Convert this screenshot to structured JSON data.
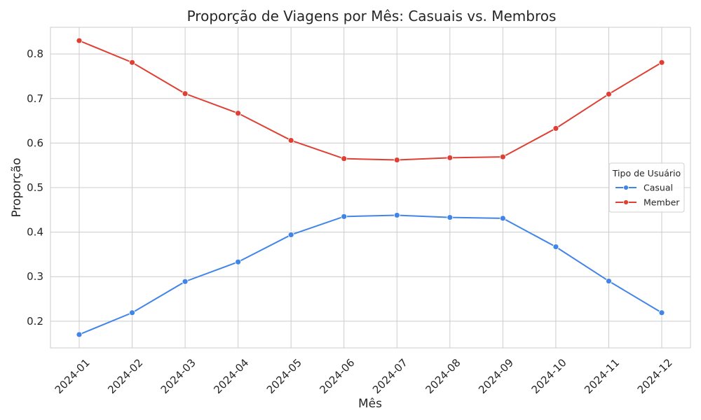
{
  "chart_data": {
    "type": "line",
    "title": "Proporção de Viagens por Mês: Casuais vs. Membros",
    "xlabel": "Mês",
    "ylabel": "Proporção",
    "categories": [
      "2024-01",
      "2024-02",
      "2024-03",
      "2024-04",
      "2024-05",
      "2024-06",
      "2024-07",
      "2024-08",
      "2024-09",
      "2024-10",
      "2024-11",
      "2024-12"
    ],
    "ylim": [
      0.14,
      0.86
    ],
    "yticks": [
      0.2,
      0.3,
      0.4,
      0.5,
      0.6,
      0.7,
      0.8
    ],
    "ytick_labels": [
      "0.2",
      "0.3",
      "0.4",
      "0.5",
      "0.6",
      "0.7",
      "0.8"
    ],
    "grid": true,
    "legend": {
      "title": "Tipo de Usuário",
      "placement": "center-right"
    },
    "series": [
      {
        "name": "Casual",
        "color": "#4285e8",
        "values": [
          0.17,
          0.219,
          0.289,
          0.333,
          0.394,
          0.435,
          0.438,
          0.433,
          0.431,
          0.367,
          0.29,
          0.219
        ]
      },
      {
        "name": "Member",
        "color": "#de4034",
        "values": [
          0.83,
          0.781,
          0.711,
          0.667,
          0.606,
          0.565,
          0.562,
          0.567,
          0.569,
          0.633,
          0.71,
          0.781
        ]
      }
    ]
  }
}
